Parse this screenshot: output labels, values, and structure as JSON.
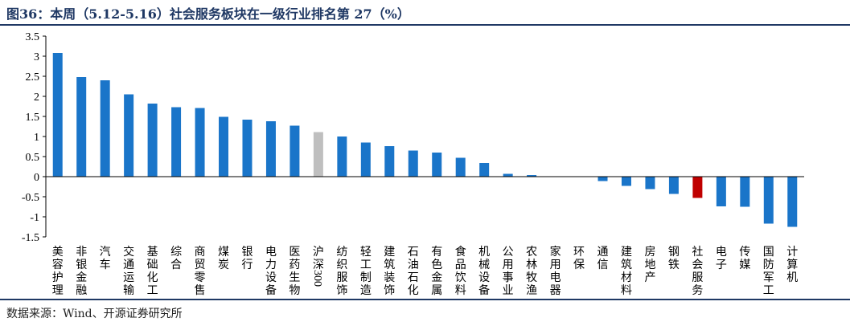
{
  "header": {
    "title": "图36：本周（5.12-5.16）社会服务板块在一级行业排名第 27（%）"
  },
  "footer": {
    "source": "数据来源：Wind、开源证券研究所"
  },
  "colors": {
    "blue": "#1a75c9",
    "highlight": "#c00000",
    "neutral": "#bfbfbf",
    "axis": "#000000"
  },
  "chart_data": {
    "type": "bar",
    "title": "",
    "xlabel": "",
    "ylabel": "",
    "ylim": [
      -1.5,
      3.5
    ],
    "yticks": [
      "3.5",
      "3",
      "2.5",
      "2",
      "1.5",
      "1",
      "0.5",
      "0",
      "-0.5",
      "-1",
      "-1.5"
    ],
    "grid": false,
    "legend": "none",
    "categories": [
      "美容护理",
      "非银金融",
      "汽车",
      "交通运输",
      "基础化工",
      "综合",
      "商贸零售",
      "煤炭",
      "银行",
      "电力设备",
      "医药生物",
      "沪深300",
      "纺织服饰",
      "轻工制造",
      "建筑装饰",
      "石油石化",
      "有色金属",
      "食品饮料",
      "机械设备",
      "公用事业",
      "农林牧渔",
      "家用电器",
      "环保",
      "通信",
      "建筑材料",
      "房地产",
      "钢铁",
      "社会服务",
      "电子",
      "传媒",
      "国防军工",
      "计算机"
    ],
    "values": [
      3.08,
      2.48,
      2.4,
      2.05,
      1.82,
      1.73,
      1.71,
      1.49,
      1.42,
      1.38,
      1.27,
      1.11,
      1.0,
      0.85,
      0.76,
      0.65,
      0.6,
      0.47,
      0.34,
      0.07,
      0.04,
      0.0,
      0.0,
      -0.11,
      -0.23,
      -0.31,
      -0.43,
      -0.53,
      -0.74,
      -0.75,
      -1.17,
      -1.25
    ],
    "highlight": {
      "社会服务": "highlight",
      "沪深300": "neutral"
    }
  }
}
